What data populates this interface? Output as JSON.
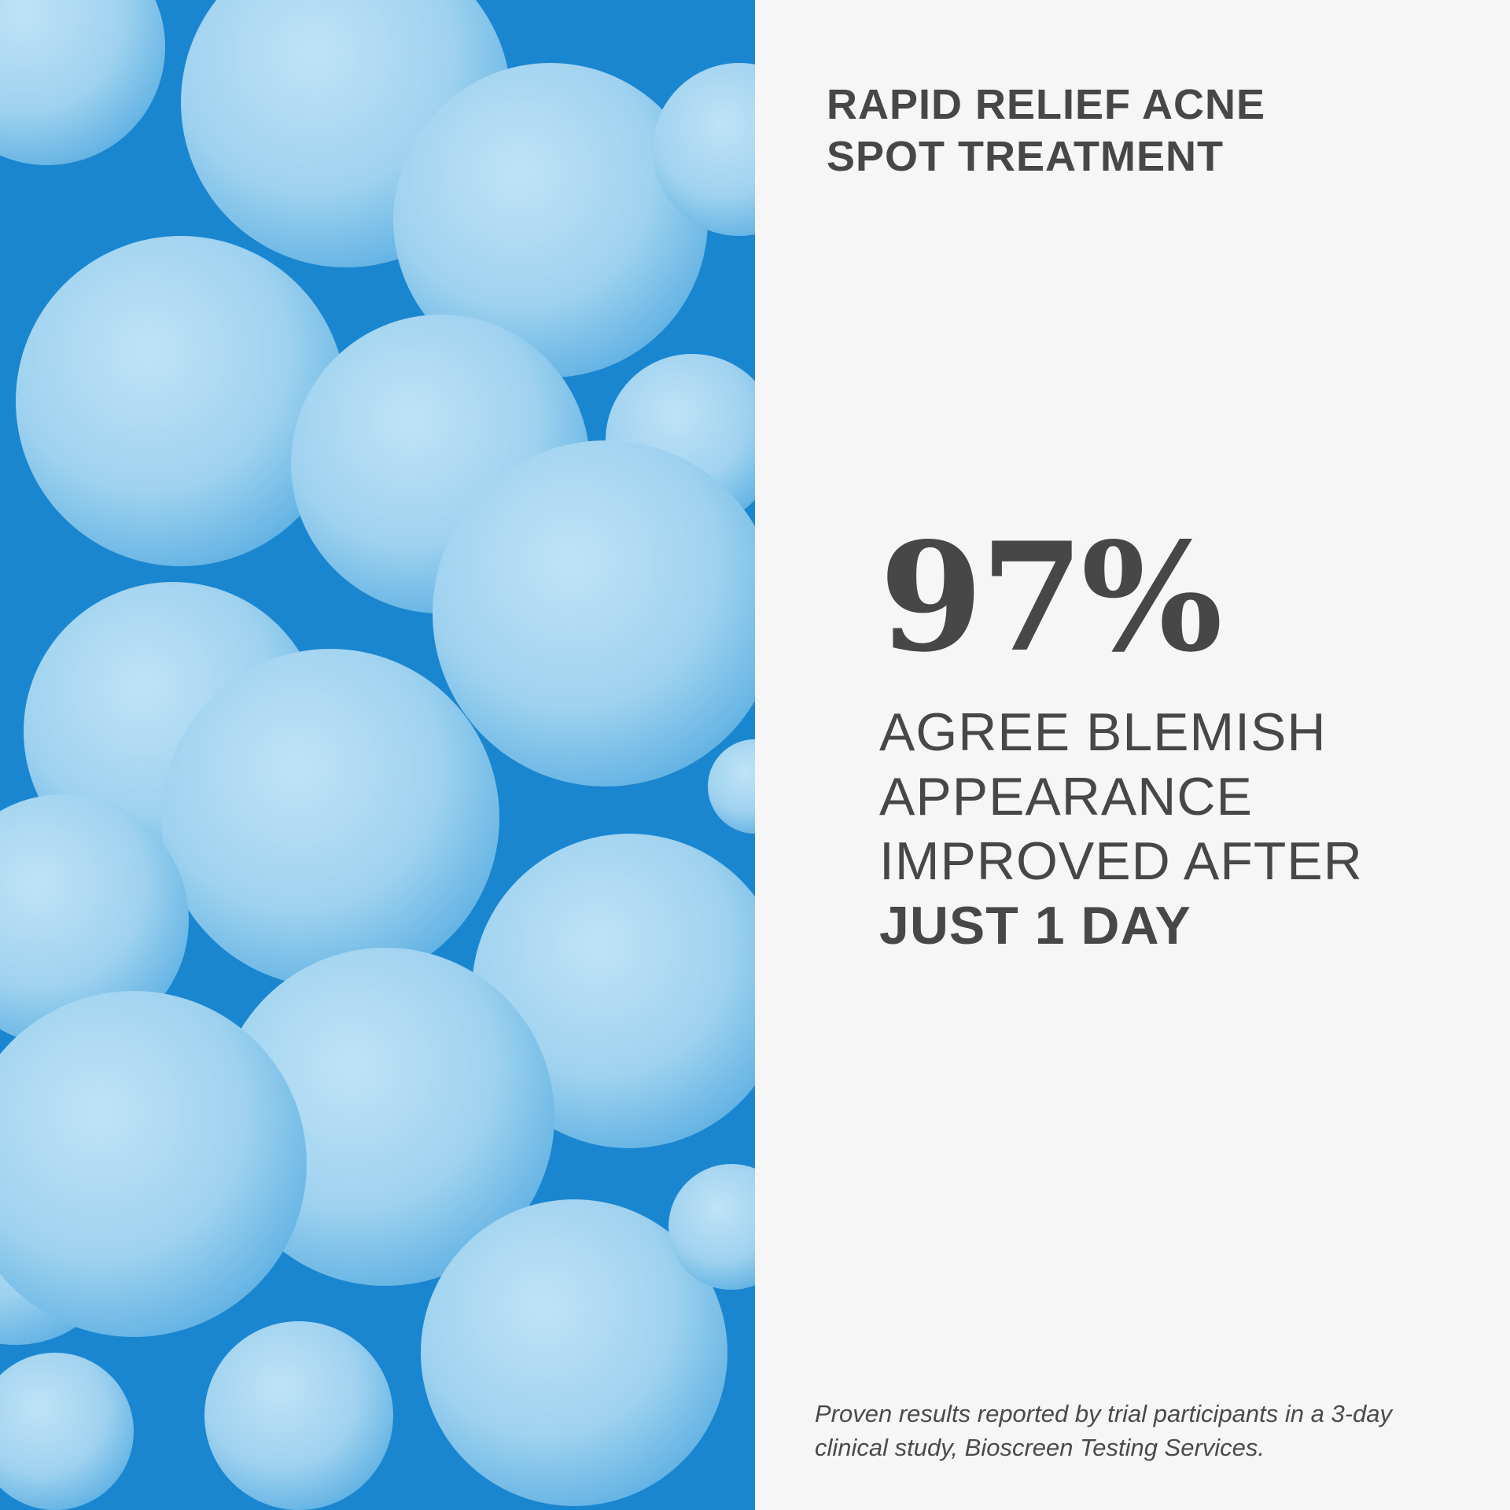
{
  "photo": {
    "subject": "blue spheres",
    "colors": {
      "sphere": "#a8d6f0",
      "shadow": "#1a86d0"
    }
  },
  "title": [
    "RAPID RELIEF ACNE",
    "SPOT TREATMENT"
  ],
  "stat": "97%",
  "claim": {
    "lines": [
      "AGREE BLEMISH",
      "APPEARANCE",
      "IMPROVED AFTER"
    ],
    "emphasis": "JUST 1 DAY"
  },
  "footnote": "Proven results reported by trial participants in a 3-day clinical study, Bioscreen Testing Services.",
  "colors": {
    "text": "#474747",
    "background": "#f6f6f6"
  }
}
